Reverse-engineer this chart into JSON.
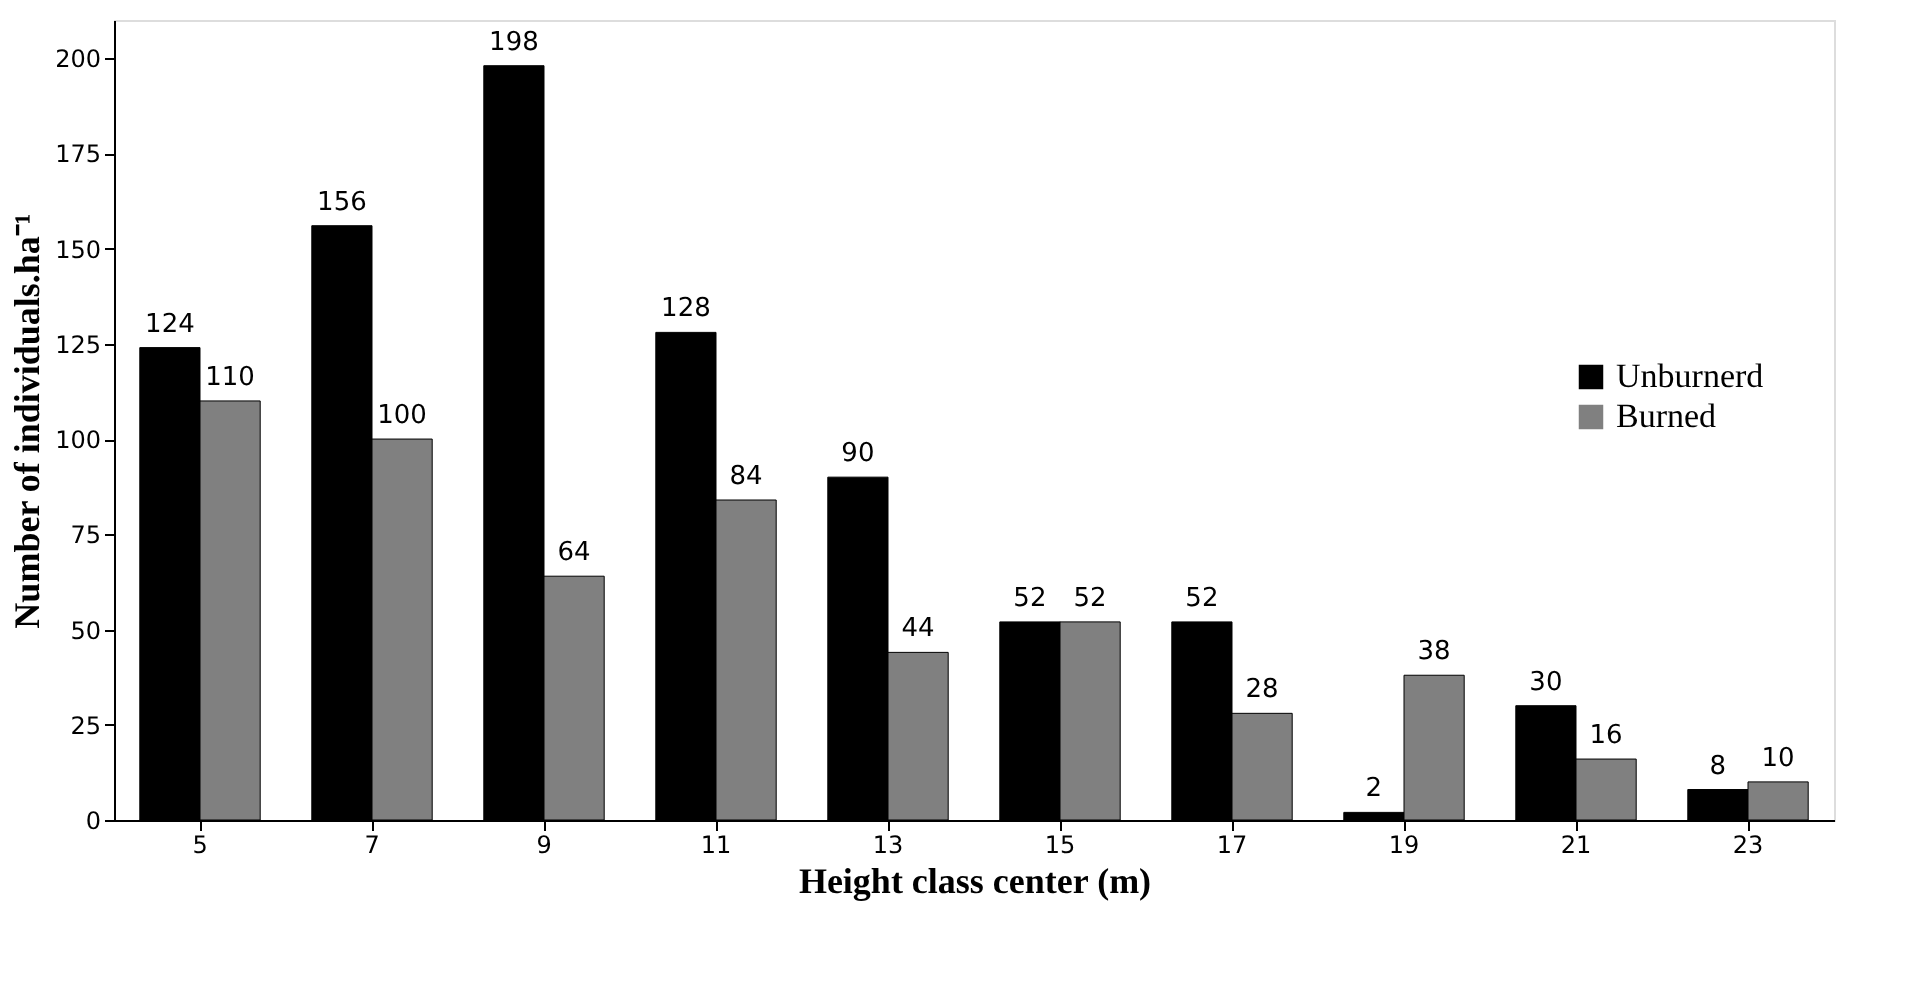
{
  "chart_data": {
    "type": "bar",
    "xlabel": "Height class center (m)",
    "ylabel": "Number of individuals.ha⁻¹",
    "categories": [
      "5",
      "7",
      "9",
      "11",
      "13",
      "15",
      "17",
      "19",
      "21",
      "23"
    ],
    "series": [
      {
        "name": "Unburnerd",
        "color": "#000000",
        "values": [
          124,
          156,
          198,
          128,
          90,
          52,
          52,
          2,
          30,
          8
        ]
      },
      {
        "name": "Burned",
        "color": "#808080",
        "values": [
          110,
          100,
          64,
          84,
          44,
          52,
          28,
          38,
          16,
          10
        ]
      }
    ],
    "ylim": [
      0,
      210
    ],
    "yticks": [
      0,
      25,
      50,
      75,
      100,
      125,
      150,
      175,
      200
    ],
    "grid": false,
    "legend": "right",
    "data_labels": true
  }
}
